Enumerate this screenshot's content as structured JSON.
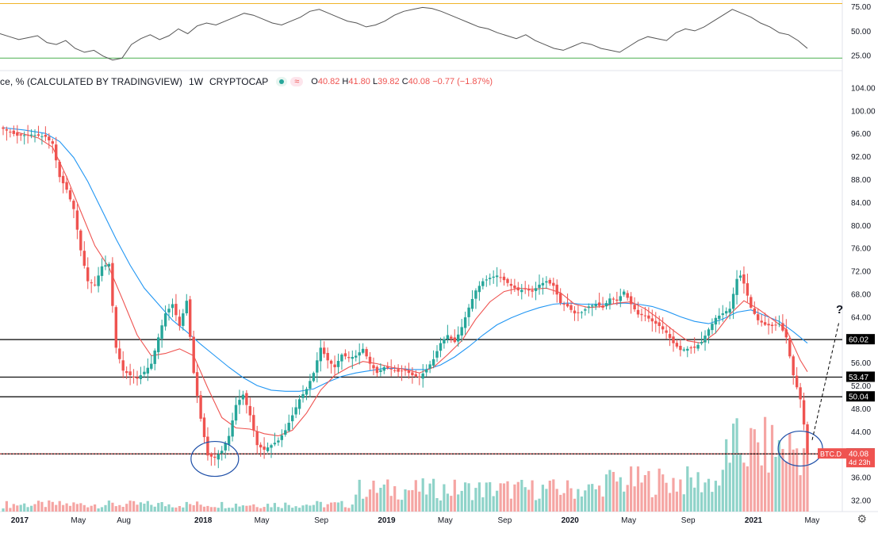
{
  "header": {
    "symbol_text": "ce, % (CALCULATED BY TRADINGVIEW)",
    "interval": "1W",
    "exchange": "CRYPTOCAP",
    "wave_icon_glyph": "≈",
    "ohlc": {
      "open": "40.82",
      "high": "41.80",
      "low": "39.82",
      "close": "40.08",
      "change": "−0.77 (−1.87%)"
    },
    "open_prefix": "O",
    "high_prefix": "H",
    "low_prefix": "L",
    "close_prefix": "C"
  },
  "price_label": {
    "ticker": "BTC.D",
    "value": "40.08",
    "countdown": "4d 23h"
  },
  "level_labels": [
    "60.02",
    "53.47",
    "50.04",
    "40.07"
  ],
  "question_mark": "?",
  "settings_icon": "gear-icon",
  "colors": {
    "up": "#26a69a",
    "down": "#ef5350",
    "ma_fast": "#ef5350",
    "ma_slow": "#2196f3",
    "rsi_line": "#555555",
    "rsi_upper": "#f0b429",
    "rsi_lower": "#4caf50",
    "annotation": "#1e4fa8"
  },
  "chart_data": [
    {
      "type": "line",
      "name": "rsi-panel",
      "yticks": [
        25,
        50,
        75
      ],
      "ytick_labels": [
        "25.00",
        "50.00",
        "75.00"
      ],
      "ylim": [
        10,
        80
      ],
      "bands": [
        78,
        22
      ],
      "x": [
        0,
        3,
        6,
        9,
        12,
        15,
        18,
        21,
        24,
        27,
        30,
        33,
        36,
        39,
        42,
        45,
        48,
        51,
        54,
        57,
        60,
        63,
        66,
        69,
        72,
        75,
        78,
        81,
        84,
        87,
        90,
        93,
        96,
        99,
        102,
        105,
        108,
        111,
        114,
        117,
        120,
        123,
        126,
        129,
        132,
        135,
        138,
        141,
        144,
        147,
        150,
        153,
        156,
        159,
        162,
        165,
        168,
        171,
        174,
        177,
        180,
        183,
        186,
        189,
        192,
        195,
        198,
        201,
        204,
        207,
        210,
        213,
        216,
        219,
        222,
        225,
        228,
        231,
        234,
        237,
        240,
        243,
        246,
        249,
        252,
        255,
        258
      ],
      "values": [
        47,
        44,
        41,
        43,
        45,
        38,
        36,
        40,
        32,
        28,
        30,
        24,
        20,
        22,
        36,
        42,
        46,
        41,
        45,
        52,
        47,
        55,
        58,
        56,
        60,
        64,
        68,
        66,
        62,
        58,
        56,
        60,
        64,
        70,
        72,
        68,
        64,
        60,
        58,
        54,
        56,
        60,
        66,
        70,
        72,
        74,
        73,
        70,
        66,
        62,
        58,
        54,
        52,
        48,
        45,
        42,
        46,
        40,
        36,
        32,
        30,
        34,
        38,
        36,
        32,
        30,
        28,
        34,
        40,
        44,
        42,
        40,
        48,
        52,
        50,
        54,
        60,
        66,
        72,
        68,
        64,
        58,
        54,
        48,
        46,
        40,
        32
      ]
    },
    {
      "type": "bar",
      "name": "btc-dominance-weekly",
      "title": "ce, % (CALCULATED BY TRADINGVIEW) · 1W · CRYPTOCAP",
      "ylim": [
        30,
        106
      ],
      "yticks": [
        32,
        36,
        40,
        44,
        48,
        52,
        56,
        60,
        64,
        68,
        72,
        76,
        80,
        84,
        88,
        92,
        96,
        100,
        104
      ],
      "ytick_labels": [
        "32.00",
        "36.00",
        "40.00",
        "44.00",
        "48.00",
        "52.00",
        "56.00",
        "60.00",
        "64.00",
        "68.00",
        "72.00",
        "76.00",
        "80.00",
        "84.00",
        "88.00",
        "92.00",
        "96.00",
        "100.00",
        "104.00"
      ],
      "xlim": [
        0,
        228
      ],
      "x_tick_labels": [
        {
          "label": "2017",
          "x": 4
        },
        {
          "label": "May",
          "x": 21
        },
        {
          "label": "Aug",
          "x": 34
        },
        {
          "label": "2018",
          "x": 56
        },
        {
          "label": "May",
          "x": 73
        },
        {
          "label": "Sep",
          "x": 90
        },
        {
          "label": "2019",
          "x": 108
        },
        {
          "label": "May",
          "x": 125
        },
        {
          "label": "Sep",
          "x": 142
        },
        {
          "label": "2020",
          "x": 160
        },
        {
          "label": "May",
          "x": 177
        },
        {
          "label": "Sep",
          "x": 194
        },
        {
          "label": "2021",
          "x": 212
        },
        {
          "label": "May",
          "x": 229
        }
      ],
      "anchors": [
        [
          0,
          96.8
        ],
        [
          4,
          95.6
        ],
        [
          8,
          95.8
        ],
        [
          12,
          95.4
        ],
        [
          14,
          94.2
        ],
        [
          16,
          88.4
        ],
        [
          18,
          86.2
        ],
        [
          20,
          82.8
        ],
        [
          22,
          75.6
        ],
        [
          24,
          70.2
        ],
        [
          26,
          69.6
        ],
        [
          28,
          72.8
        ],
        [
          30,
          73.2
        ],
        [
          32,
          58.6
        ],
        [
          34,
          54.6
        ],
        [
          36,
          53.8
        ],
        [
          38,
          53.2
        ],
        [
          40,
          54.4
        ],
        [
          42,
          55.8
        ],
        [
          44,
          60.4
        ],
        [
          46,
          64.6
        ],
        [
          48,
          66.2
        ],
        [
          50,
          62.4
        ],
        [
          52,
          66.8
        ],
        [
          54,
          54.2
        ],
        [
          56,
          46.2
        ],
        [
          58,
          39.8
        ],
        [
          60,
          39.4
        ],
        [
          62,
          40.6
        ],
        [
          64,
          43.2
        ],
        [
          66,
          48.6
        ],
        [
          68,
          50.4
        ],
        [
          70,
          46.8
        ],
        [
          72,
          41.6
        ],
        [
          74,
          40.8
        ],
        [
          76,
          41.6
        ],
        [
          78,
          42.4
        ],
        [
          80,
          44.2
        ],
        [
          82,
          46.8
        ],
        [
          84,
          49.6
        ],
        [
          86,
          51.4
        ],
        [
          88,
          54.2
        ],
        [
          90,
          58.6
        ],
        [
          92,
          56.4
        ],
        [
          94,
          55.2
        ],
        [
          96,
          57.4
        ],
        [
          98,
          56.8
        ],
        [
          100,
          57.2
        ],
        [
          102,
          58.4
        ],
        [
          104,
          55.8
        ],
        [
          106,
          54.2
        ],
        [
          108,
          55.2
        ],
        [
          110,
          54.8
        ],
        [
          112,
          54.4
        ],
        [
          114,
          54.6
        ],
        [
          116,
          53.8
        ],
        [
          118,
          53.4
        ],
        [
          120,
          54.8
        ],
        [
          122,
          56.6
        ],
        [
          124,
          59.4
        ],
        [
          126,
          60.8
        ],
        [
          128,
          59.6
        ],
        [
          130,
          62.2
        ],
        [
          132,
          65.6
        ],
        [
          134,
          68.6
        ],
        [
          136,
          70.2
        ],
        [
          138,
          70.8
        ],
        [
          140,
          71.2
        ],
        [
          142,
          70.4
        ],
        [
          144,
          69.4
        ],
        [
          146,
          68.6
        ],
        [
          148,
          68.8
        ],
        [
          150,
          68.4
        ],
        [
          152,
          69.6
        ],
        [
          154,
          70.2
        ],
        [
          156,
          69.4
        ],
        [
          158,
          66.4
        ],
        [
          160,
          65.8
        ],
        [
          162,
          64.6
        ],
        [
          164,
          64.8
        ],
        [
          166,
          65.8
        ],
        [
          168,
          66.2
        ],
        [
          170,
          65.6
        ],
        [
          172,
          67.2
        ],
        [
          174,
          66.8
        ],
        [
          176,
          68.4
        ],
        [
          178,
          66.2
        ],
        [
          180,
          64.4
        ],
        [
          182,
          64.2
        ],
        [
          184,
          63.2
        ],
        [
          186,
          62.4
        ],
        [
          188,
          61.2
        ],
        [
          190,
          59.4
        ],
        [
          192,
          58.2
        ],
        [
          194,
          58.4
        ],
        [
          196,
          58.6
        ],
        [
          198,
          59.6
        ],
        [
          200,
          61.8
        ],
        [
          202,
          63.8
        ],
        [
          204,
          64.6
        ],
        [
          206,
          65.4
        ],
        [
          208,
          70.6
        ],
        [
          209,
          71.2
        ],
        [
          210,
          69.8
        ],
        [
          212,
          65.6
        ],
        [
          214,
          63.4
        ],
        [
          216,
          62.6
        ],
        [
          218,
          62.4
        ],
        [
          220,
          62.8
        ],
        [
          222,
          60.4
        ],
        [
          224,
          53.8
        ],
        [
          226,
          49.6
        ],
        [
          227,
          45.2
        ],
        [
          228,
          40.08
        ]
      ],
      "ma_fast": [
        [
          4,
          96.2
        ],
        [
          10,
          95.2
        ],
        [
          14,
          93.6
        ],
        [
          18,
          88.4
        ],
        [
          22,
          82.4
        ],
        [
          26,
          76.4
        ],
        [
          30,
          72.6
        ],
        [
          34,
          66.8
        ],
        [
          38,
          60.8
        ],
        [
          42,
          57.2
        ],
        [
          46,
          57.6
        ],
        [
          50,
          58.4
        ],
        [
          54,
          57.2
        ],
        [
          58,
          51.6
        ],
        [
          62,
          46.4
        ],
        [
          66,
          44.6
        ],
        [
          70,
          44.4
        ],
        [
          74,
          43.6
        ],
        [
          78,
          43.2
        ],
        [
          82,
          44.2
        ],
        [
          86,
          47.2
        ],
        [
          90,
          51.2
        ],
        [
          94,
          53.8
        ],
        [
          98,
          55.2
        ],
        [
          102,
          56.2
        ],
        [
          106,
          55.8
        ],
        [
          110,
          55.2
        ],
        [
          114,
          54.8
        ],
        [
          118,
          54.2
        ],
        [
          122,
          55.2
        ],
        [
          126,
          57.4
        ],
        [
          130,
          59.8
        ],
        [
          134,
          63.6
        ],
        [
          138,
          66.6
        ],
        [
          142,
          68.4
        ],
        [
          146,
          69.0
        ],
        [
          150,
          68.8
        ],
        [
          154,
          69.0
        ],
        [
          158,
          68.2
        ],
        [
          162,
          66.2
        ],
        [
          166,
          65.6
        ],
        [
          170,
          65.8
        ],
        [
          174,
          66.4
        ],
        [
          178,
          66.6
        ],
        [
          182,
          65.4
        ],
        [
          186,
          63.6
        ],
        [
          190,
          61.6
        ],
        [
          194,
          59.8
        ],
        [
          198,
          59.4
        ],
        [
          202,
          61.2
        ],
        [
          206,
          64.4
        ],
        [
          210,
          66.8
        ],
        [
          214,
          65.4
        ],
        [
          218,
          63.6
        ],
        [
          222,
          61.8
        ],
        [
          226,
          56.4
        ],
        [
          228,
          54.4
        ]
      ],
      "ma_slow": [
        [
          0,
          97.0
        ],
        [
          6,
          96.6
        ],
        [
          12,
          96.0
        ],
        [
          16,
          94.6
        ],
        [
          20,
          91.8
        ],
        [
          24,
          87.6
        ],
        [
          28,
          82.6
        ],
        [
          32,
          77.6
        ],
        [
          36,
          73.0
        ],
        [
          40,
          69.0
        ],
        [
          44,
          66.2
        ],
        [
          48,
          63.4
        ],
        [
          52,
          61.4
        ],
        [
          56,
          59.2
        ],
        [
          60,
          57.2
        ],
        [
          64,
          55.2
        ],
        [
          68,
          53.4
        ],
        [
          72,
          52.0
        ],
        [
          76,
          51.2
        ],
        [
          80,
          51.0
        ],
        [
          84,
          51.0
        ],
        [
          88,
          51.4
        ],
        [
          92,
          52.6
        ],
        [
          96,
          53.6
        ],
        [
          100,
          54.2
        ],
        [
          104,
          54.6
        ],
        [
          108,
          55.0
        ],
        [
          112,
          55.0
        ],
        [
          116,
          54.8
        ],
        [
          120,
          54.8
        ],
        [
          124,
          55.6
        ],
        [
          128,
          57.0
        ],
        [
          132,
          58.8
        ],
        [
          136,
          60.8
        ],
        [
          140,
          62.6
        ],
        [
          144,
          63.8
        ],
        [
          148,
          64.8
        ],
        [
          152,
          65.6
        ],
        [
          156,
          66.2
        ],
        [
          160,
          66.4
        ],
        [
          164,
          66.2
        ],
        [
          168,
          66.2
        ],
        [
          172,
          66.2
        ],
        [
          176,
          66.4
        ],
        [
          180,
          66.2
        ],
        [
          184,
          65.8
        ],
        [
          188,
          65.0
        ],
        [
          192,
          64.0
        ],
        [
          196,
          63.2
        ],
        [
          200,
          62.8
        ],
        [
          204,
          63.6
        ],
        [
          208,
          64.8
        ],
        [
          212,
          65.2
        ],
        [
          216,
          64.2
        ],
        [
          220,
          63.2
        ],
        [
          224,
          61.4
        ],
        [
          228,
          59.4
        ]
      ],
      "levels": [
        60.02,
        53.47,
        50.04,
        40.07
      ]
    }
  ]
}
